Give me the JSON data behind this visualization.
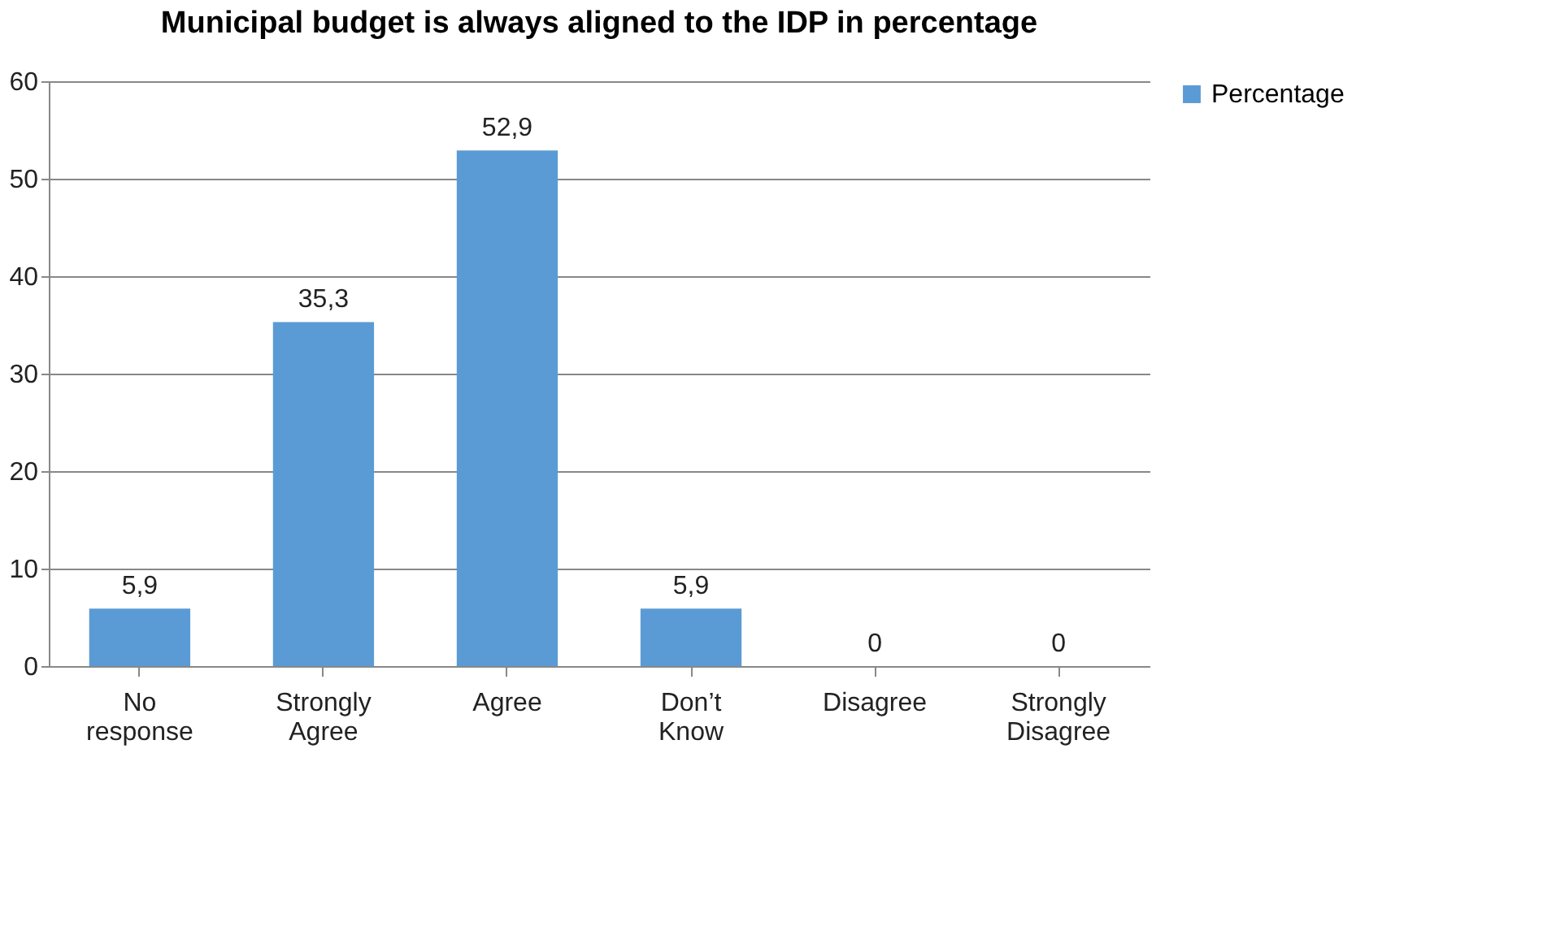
{
  "chart_data": {
    "type": "bar",
    "title": "Municipal budget is always aligned to the IDP  in percentage",
    "categories": [
      "No response",
      "Strongly Agree",
      "Agree",
      "Don’t Know",
      "Disagree",
      "Strongly Disagree"
    ],
    "series": [
      {
        "name": "Percentage",
        "color": "#5b9bd5",
        "values": [
          5.9,
          35.3,
          52.9,
          5.9,
          0,
          0
        ],
        "value_labels": [
          "5,9",
          "35,3",
          "52,9",
          "5,9",
          "0",
          "0"
        ]
      }
    ],
    "ylim": [
      0,
      60
    ],
    "yticks": [
      0,
      10,
      20,
      30,
      40,
      50,
      60
    ],
    "grid": "y",
    "legend": "right"
  }
}
